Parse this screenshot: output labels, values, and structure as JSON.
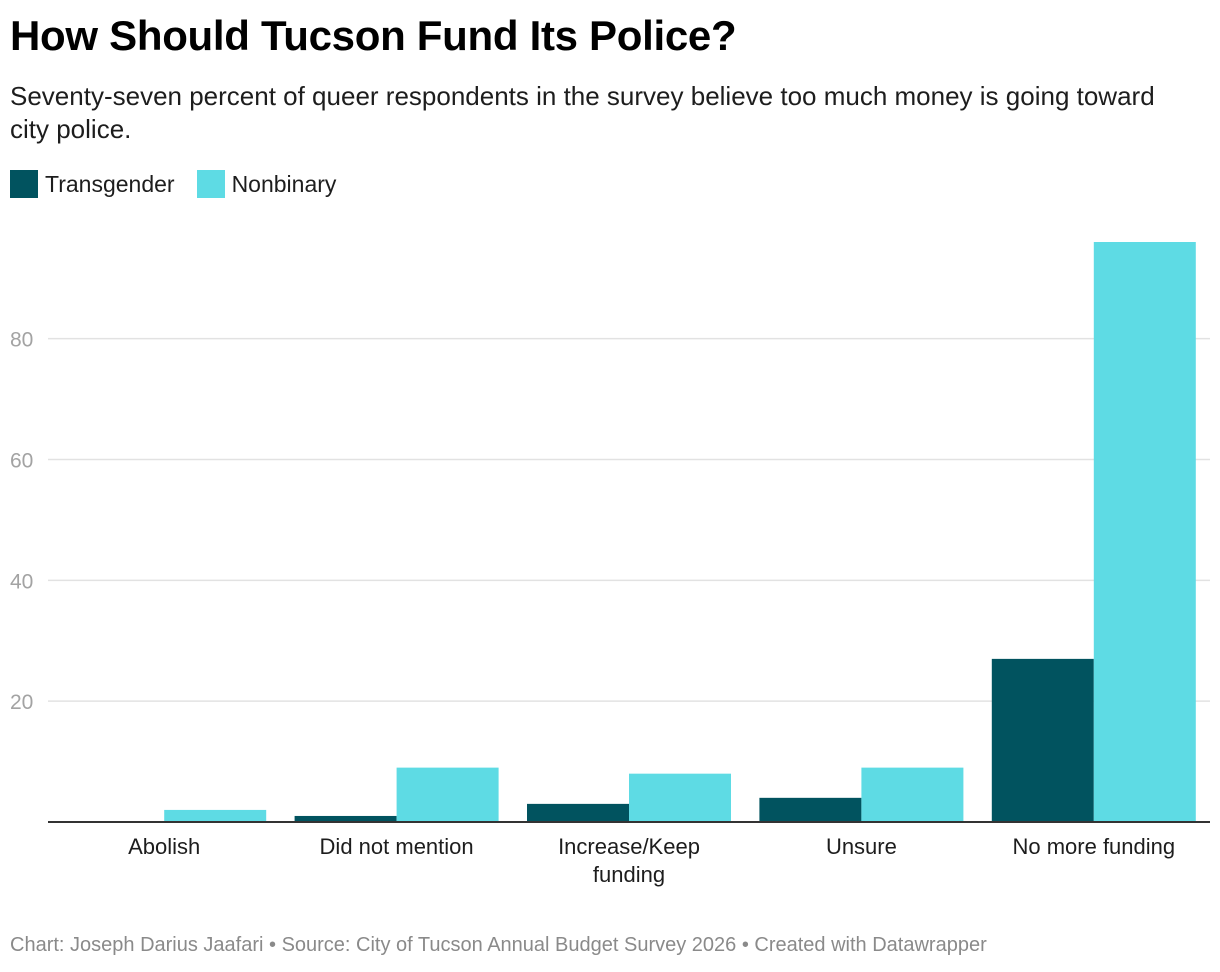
{
  "chart_data": {
    "type": "bar",
    "title": "How Should Tucson Fund Its Police?",
    "subtitle": "Seventy-seven percent of queer respondents in the survey believe too much money is going toward city police.",
    "categories": [
      "Abolish",
      "Did not mention",
      "Increase/Keep funding",
      "Unsure",
      "No more funding"
    ],
    "category_lines": [
      [
        "Abolish"
      ],
      [
        "Did not mention"
      ],
      [
        "Increase/Keep",
        "funding"
      ],
      [
        "Unsure"
      ],
      [
        "No more funding"
      ]
    ],
    "series": [
      {
        "name": "Transgender",
        "color": "#01535f",
        "values": [
          0,
          1,
          3,
          4,
          27
        ]
      },
      {
        "name": "Nonbinary",
        "color": "#5edbe4",
        "values": [
          2,
          9,
          8,
          9,
          96
        ]
      }
    ],
    "yticks": [
      20,
      40,
      60,
      80
    ],
    "ylim": [
      0,
      96
    ],
    "grid": true,
    "xlabel": "",
    "ylabel": "",
    "legend_position": "top-left"
  },
  "footer": {
    "text": "Chart: Joseph Darius Jaafari • Source: City of Tucson Annual Budget Survey 2026  • Created with Datawrapper"
  }
}
